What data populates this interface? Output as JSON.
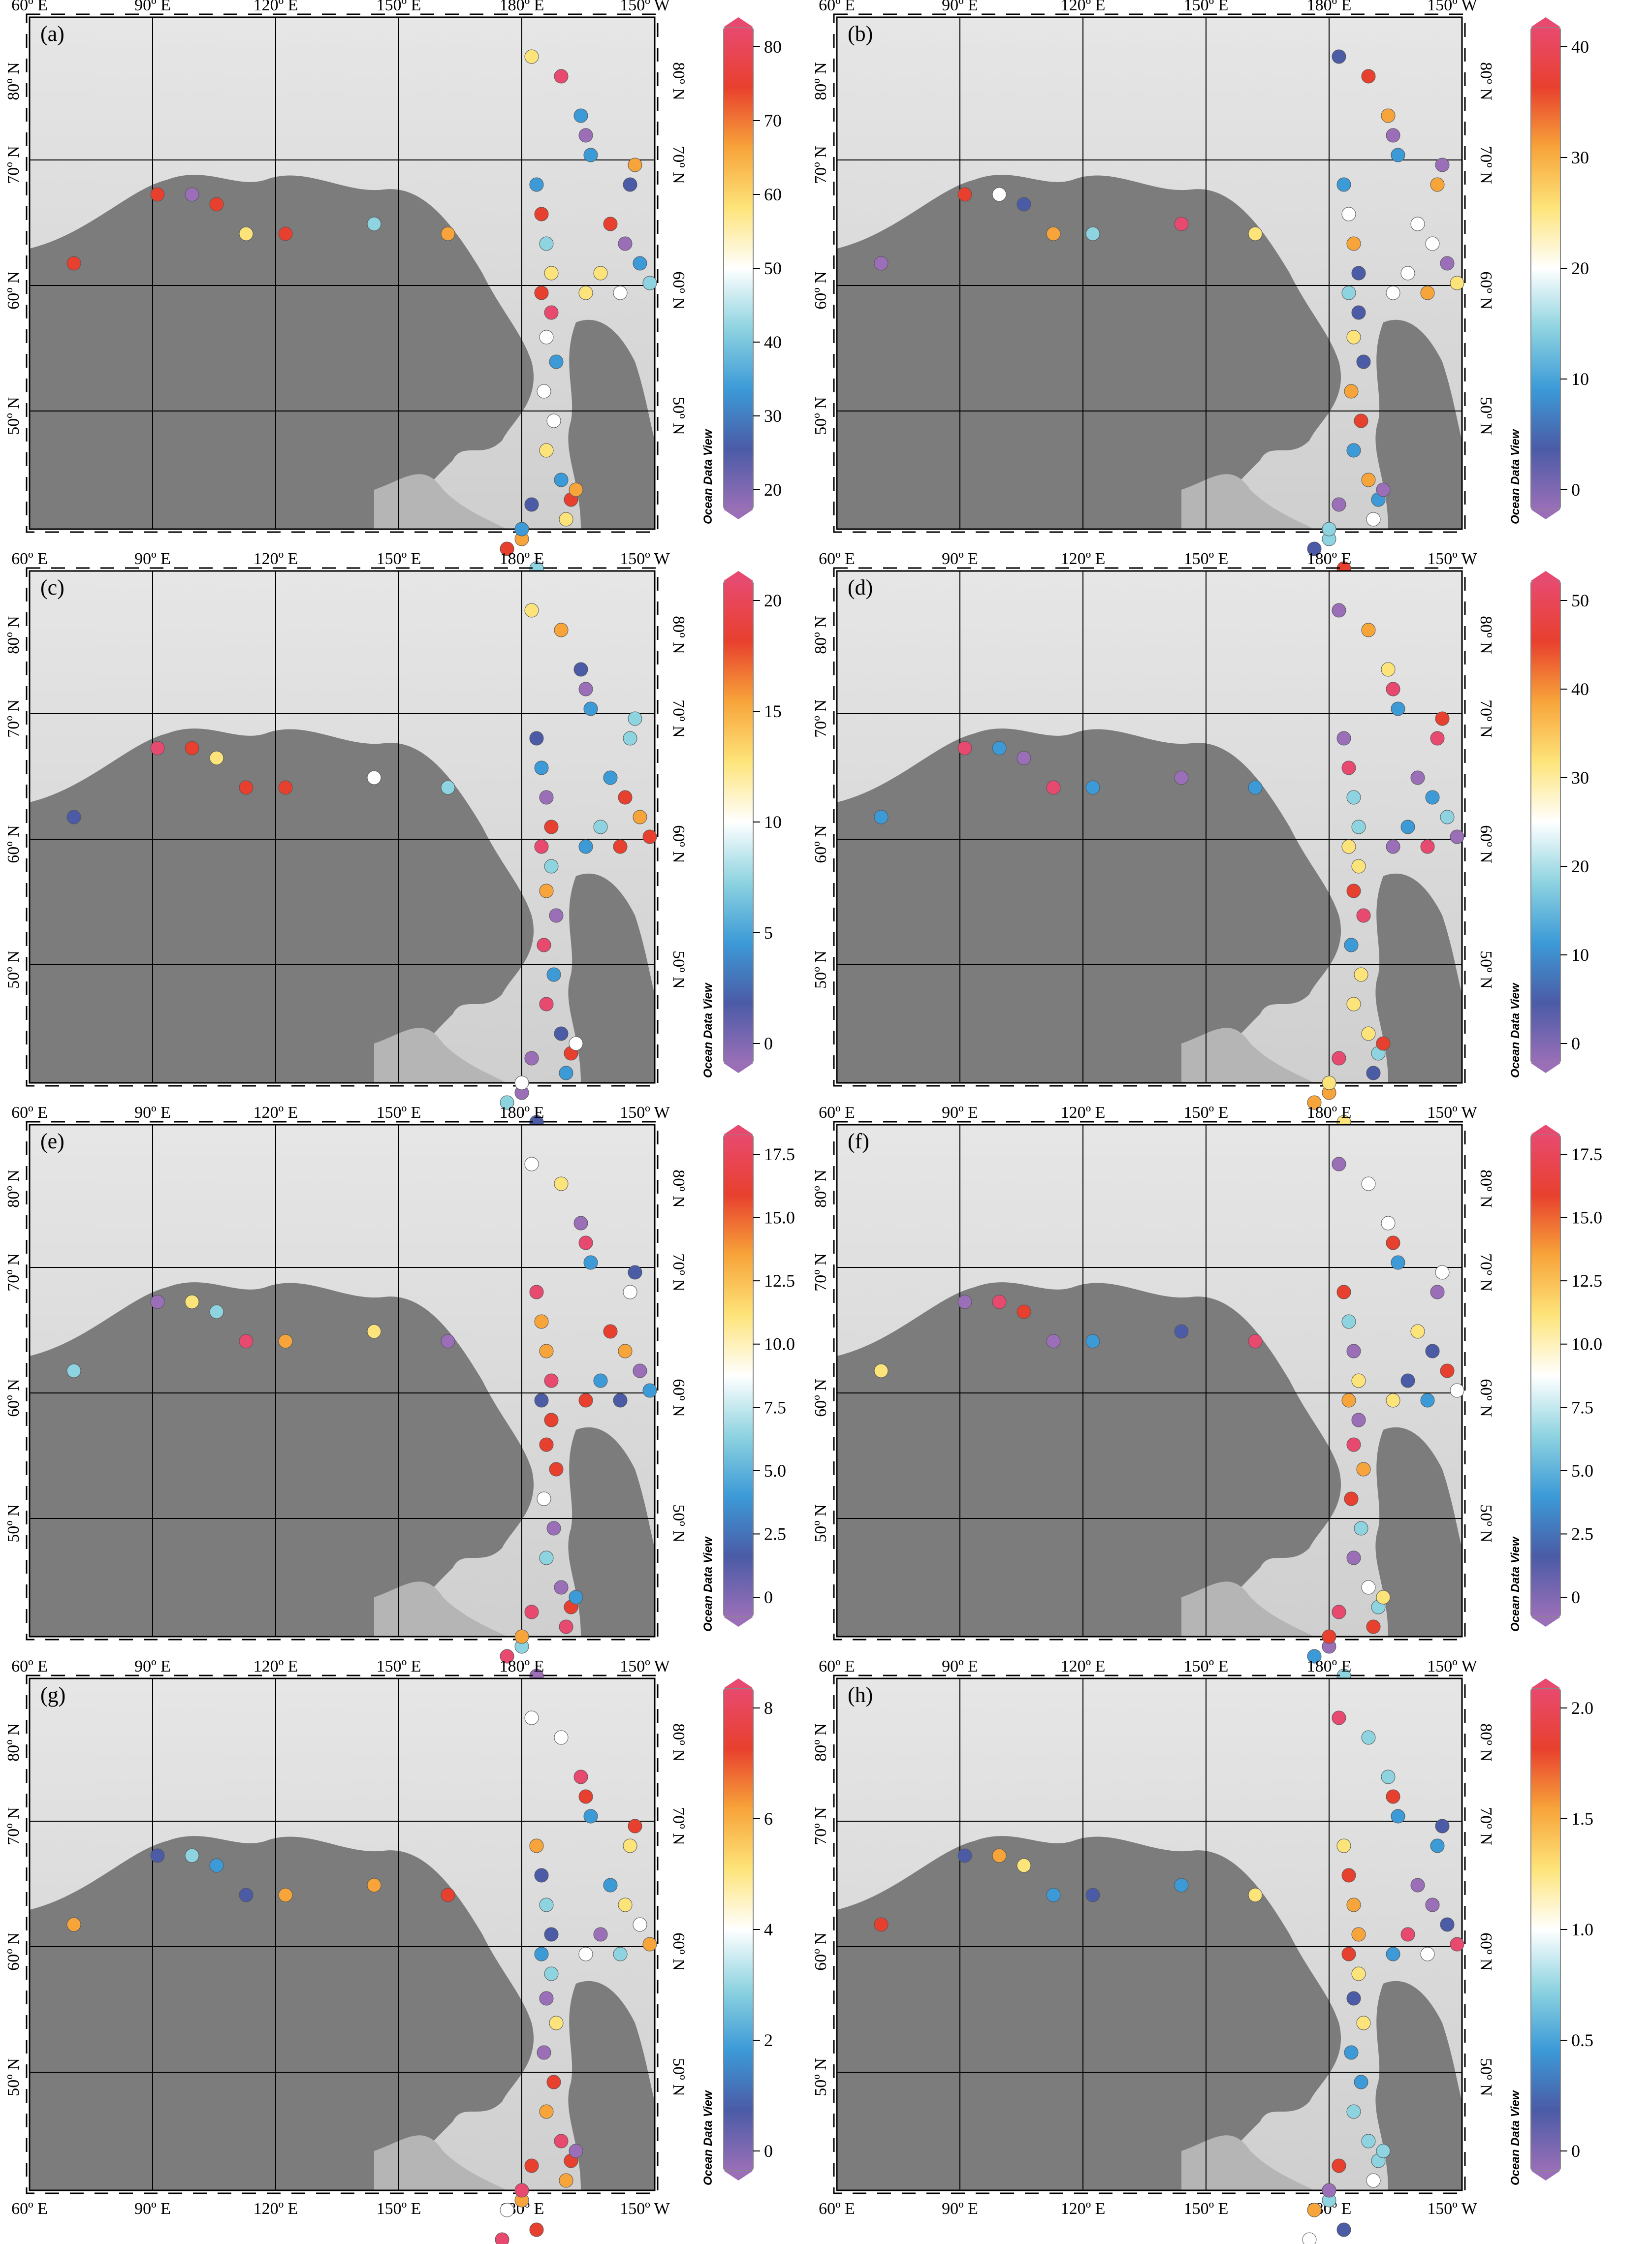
{
  "figure": {
    "panels": [
      {
        "letter": "(a)",
        "ticks": [
          "80",
          "70",
          "60",
          "50",
          "40",
          "30",
          "20"
        ],
        "palette": "rb"
      },
      {
        "letter": "(b)",
        "ticks": [
          "40",
          "30",
          "20",
          "10",
          "0"
        ],
        "palette": "rb"
      },
      {
        "letter": "(c)",
        "ticks": [
          "20",
          "15",
          "10",
          "5",
          "0"
        ],
        "palette": "rb"
      },
      {
        "letter": "(d)",
        "ticks": [
          "50",
          "40",
          "30",
          "20",
          "10",
          "0"
        ],
        "palette": "rb"
      },
      {
        "letter": "(e)",
        "ticks": [
          "17.5",
          "15.0",
          "12.5",
          "10.0",
          "7.5",
          "5.0",
          "2.5",
          "0"
        ],
        "palette": "rb"
      },
      {
        "letter": "(f)",
        "ticks": [
          "17.5",
          "15.0",
          "12.5",
          "10.0",
          "7.5",
          "5.0",
          "2.5",
          "0"
        ],
        "palette": "rb"
      },
      {
        "letter": "(g)",
        "ticks": [
          "8",
          "6",
          "4",
          "2",
          "0"
        ],
        "palette": "rb"
      },
      {
        "letter": "(h)",
        "ticks": [
          "2.0",
          "1.5",
          "1.0",
          "0.5",
          "0"
        ],
        "palette": "rb"
      }
    ],
    "lon_labels": [
      "60º E",
      "90º E",
      "120º E",
      "150º E",
      "180º E",
      "150º W"
    ],
    "lat_labels": [
      "80º N",
      "70º N",
      "60º N",
      "50º N"
    ],
    "watermark": "Ocean Data View",
    "colors": {
      "ocean": "#cfcfcf",
      "deep_ocean": "#e6e6e6",
      "land": "#7c7c7c",
      "grid": "#000000",
      "palette": [
        "#9a6fb8",
        "#4b5ba6",
        "#3c9ad7",
        "#8ed3e0",
        "#ffffff",
        "#fde47a",
        "#f7a43a",
        "#e8402e",
        "#e84a6f"
      ]
    }
  }
}
